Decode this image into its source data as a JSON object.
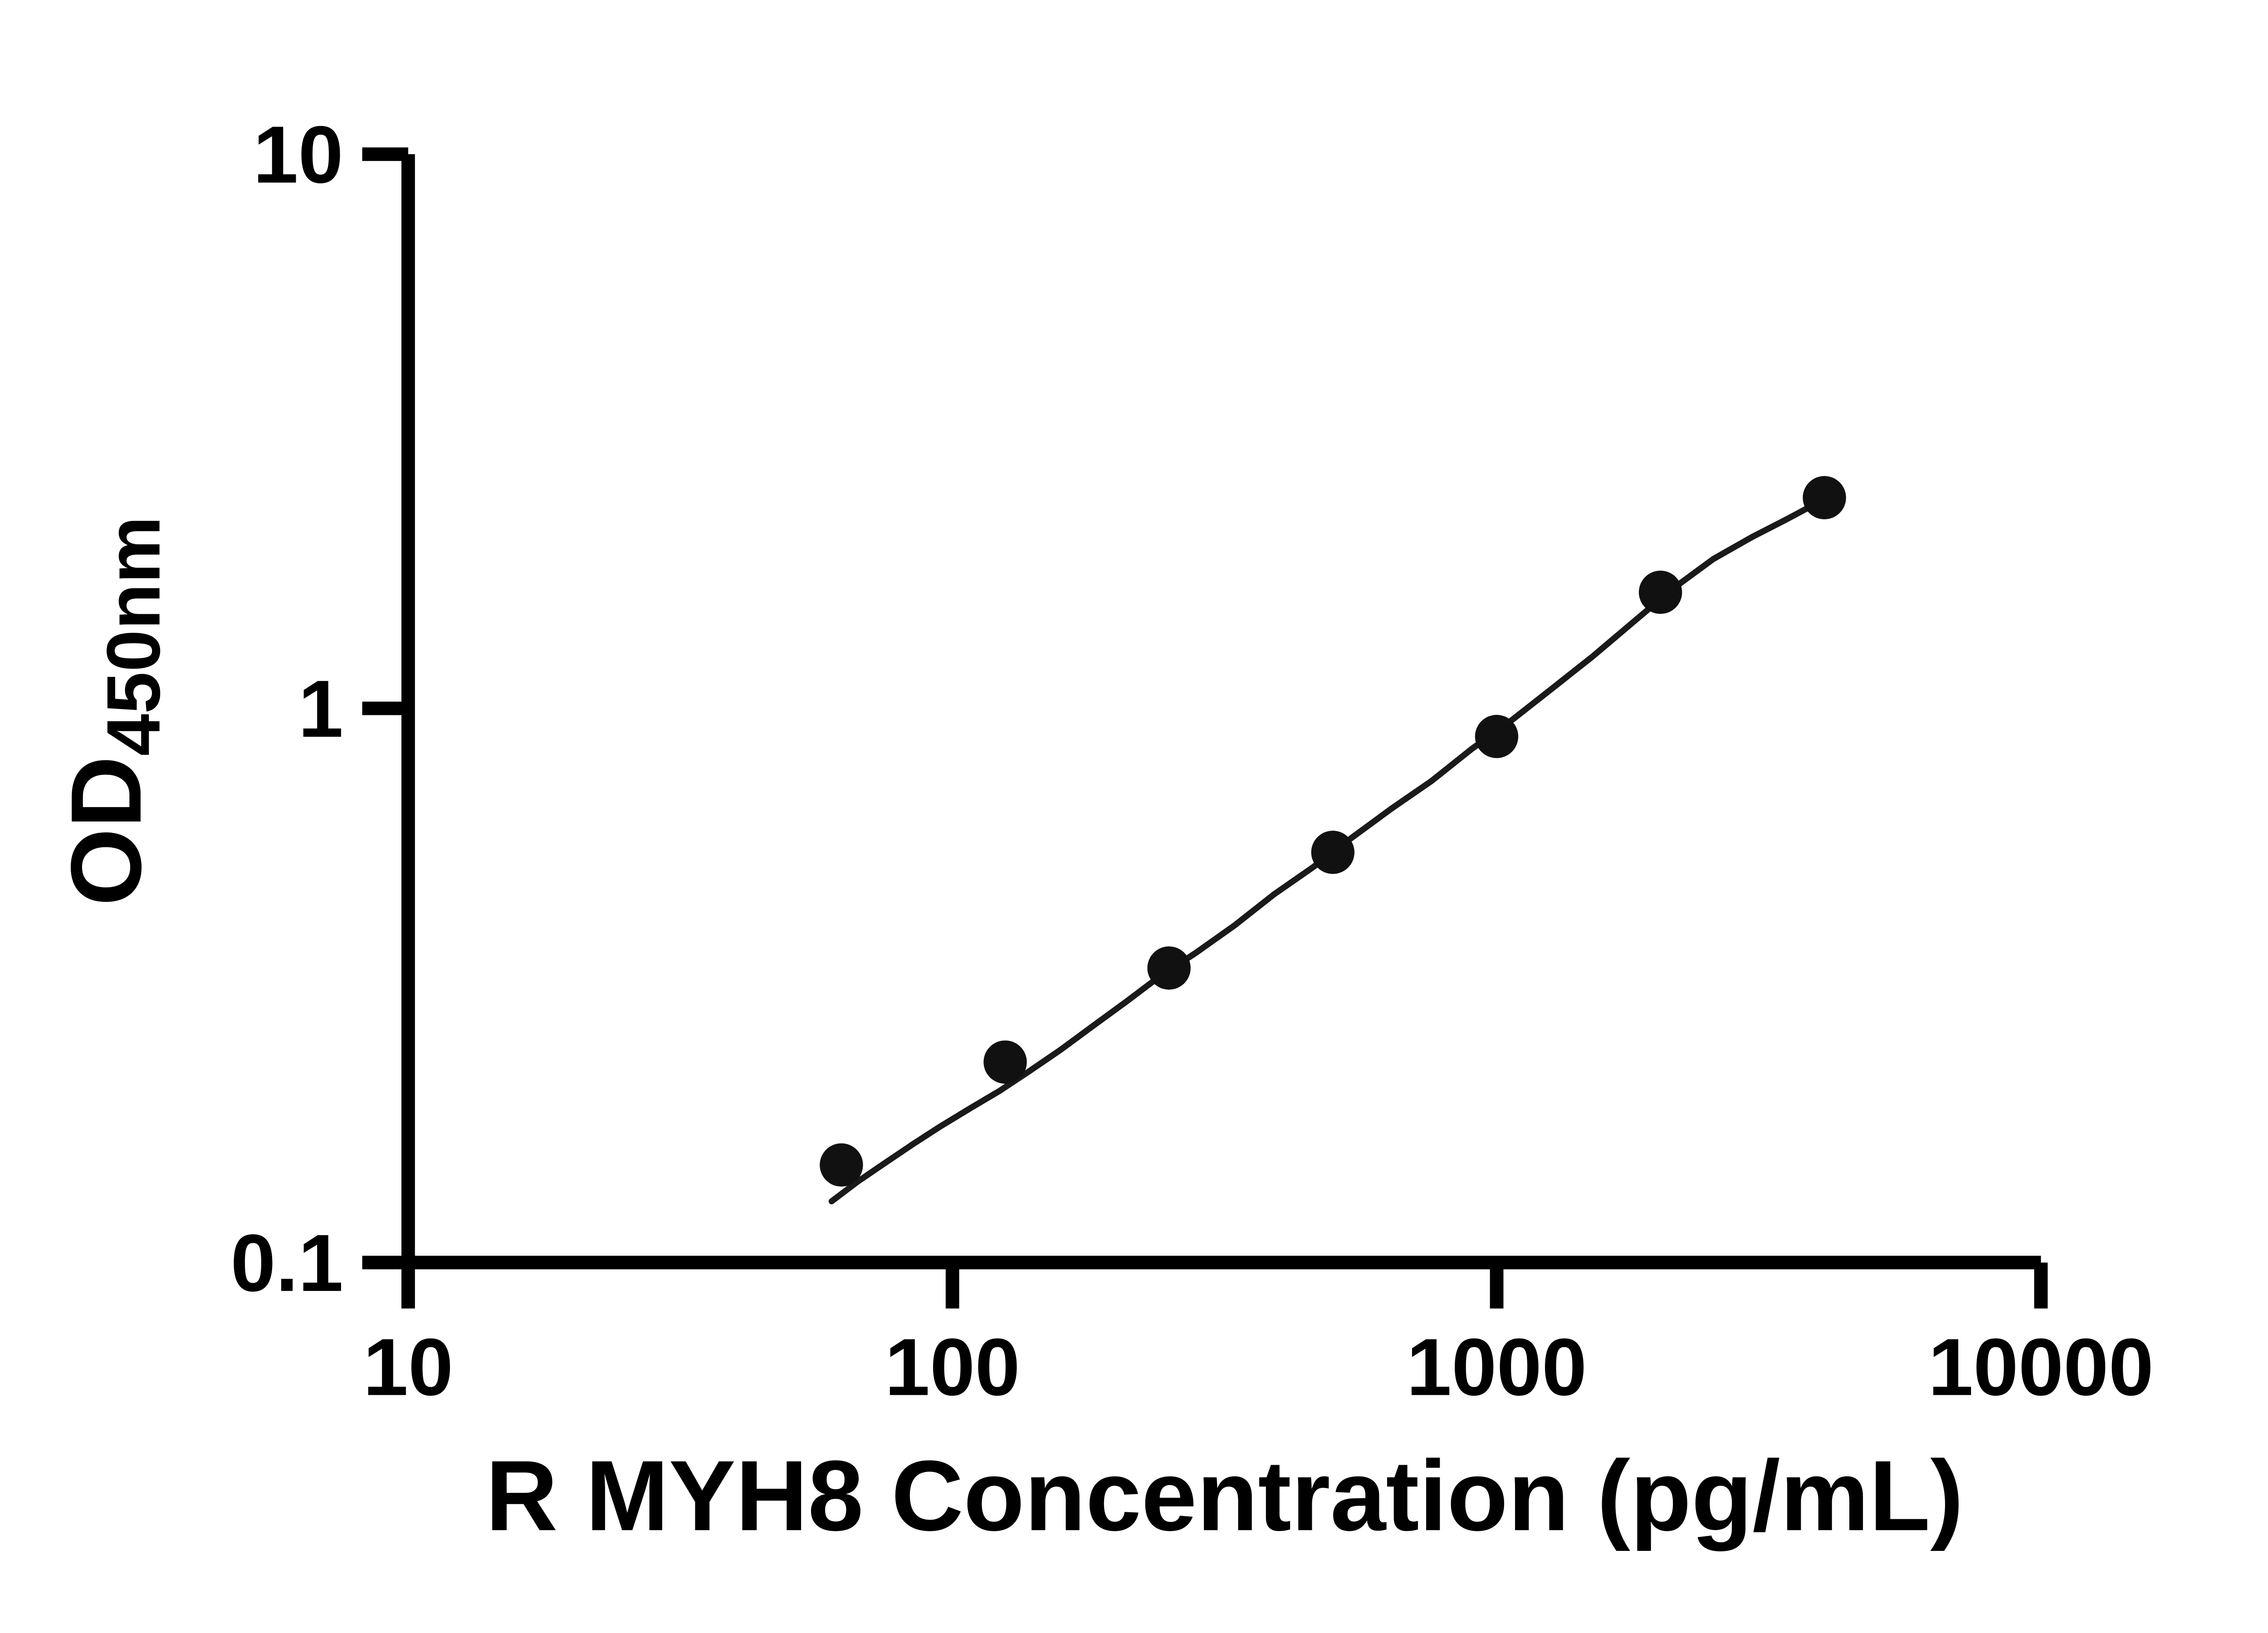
{
  "chart_data": {
    "type": "scatter",
    "title": "",
    "xlabel": "R MYH8 Concentration (pg/mL)",
    "ylabel": "OD450nm",
    "ylabel_main": "OD",
    "ylabel_sub": "450nm",
    "x_scale": "log10",
    "y_scale": "log10",
    "xlim": [
      10,
      10000
    ],
    "ylim": [
      0.1,
      10
    ],
    "grid": false,
    "legend": "none",
    "axis_color": "#000000",
    "x_ticks": [
      {
        "value": 10,
        "label": "10"
      },
      {
        "value": 100,
        "label": "100"
      },
      {
        "value": 1000,
        "label": "1000"
      },
      {
        "value": 10000,
        "label": "10000"
      }
    ],
    "y_ticks": [
      {
        "value": 0.1,
        "label": "0.1"
      },
      {
        "value": 1,
        "label": "1"
      },
      {
        "value": 10,
        "label": "10"
      }
    ],
    "series": [
      {
        "marker": "filled-circle",
        "color": "#111111",
        "points": [
          {
            "x": 62.5,
            "y": 0.15
          },
          {
            "x": 125,
            "y": 0.23
          },
          {
            "x": 250,
            "y": 0.34
          },
          {
            "x": 500,
            "y": 0.55
          },
          {
            "x": 1000,
            "y": 0.89
          },
          {
            "x": 2000,
            "y": 1.62
          },
          {
            "x": 4000,
            "y": 2.4
          }
        ]
      }
    ],
    "fit_curve": {
      "color": "#1a1a1a",
      "points": [
        [
          60,
          0.129
        ],
        [
          67,
          0.14
        ],
        [
          75,
          0.151
        ],
        [
          85,
          0.164
        ],
        [
          95,
          0.176
        ],
        [
          108,
          0.19
        ],
        [
          122,
          0.204
        ],
        [
          138,
          0.221
        ],
        [
          158,
          0.242
        ],
        [
          180,
          0.266
        ],
        [
          208,
          0.295
        ],
        [
          240,
          0.328
        ],
        [
          280,
          0.362
        ],
        [
          330,
          0.406
        ],
        [
          390,
          0.462
        ],
        [
          460,
          0.517
        ],
        [
          540,
          0.583
        ],
        [
          640,
          0.659
        ],
        [
          760,
          0.74
        ],
        [
          900,
          0.845
        ],
        [
          1070,
          0.955
        ],
        [
          1270,
          1.09
        ],
        [
          1500,
          1.24
        ],
        [
          1780,
          1.43
        ],
        [
          2100,
          1.64
        ],
        [
          2500,
          1.86
        ],
        [
          2950,
          2.04
        ],
        [
          3400,
          2.19
        ],
        [
          3700,
          2.29
        ],
        [
          4000,
          2.38
        ]
      ]
    }
  }
}
